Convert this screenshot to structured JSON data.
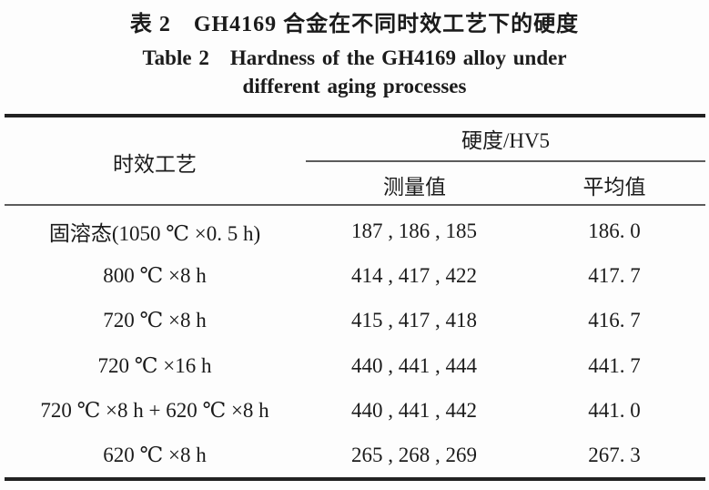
{
  "caption": {
    "zh": "表 2　GH4169 合金在不同时效工艺下的硬度",
    "en_line1": "Table 2　Hardness of the GH4169 alloy under",
    "en_line2": "different aging processes"
  },
  "table": {
    "header": {
      "process": "时效工艺",
      "hardness_group": "硬度/HV5",
      "measured": "测量值",
      "average": "平均值"
    },
    "rows": [
      {
        "process": "固溶态(1050 ℃ ×0. 5 h)",
        "measured": "187 , 186 , 185",
        "average": "186. 0"
      },
      {
        "process": "800 ℃ ×8 h",
        "measured": "414 , 417 , 422",
        "average": "417. 7"
      },
      {
        "process": "720 ℃ ×8 h",
        "measured": "415 , 417 , 418",
        "average": "416. 7"
      },
      {
        "process": "720 ℃ ×16 h",
        "measured": "440 , 441 , 444",
        "average": "441. 7"
      },
      {
        "process": "720 ℃ ×8 h + 620 ℃ ×8 h",
        "measured": "440 , 441 , 442",
        "average": "441. 0"
      },
      {
        "process": "620 ℃ ×8 h",
        "measured": "265 , 268 , 269",
        "average": "267. 3"
      }
    ]
  }
}
